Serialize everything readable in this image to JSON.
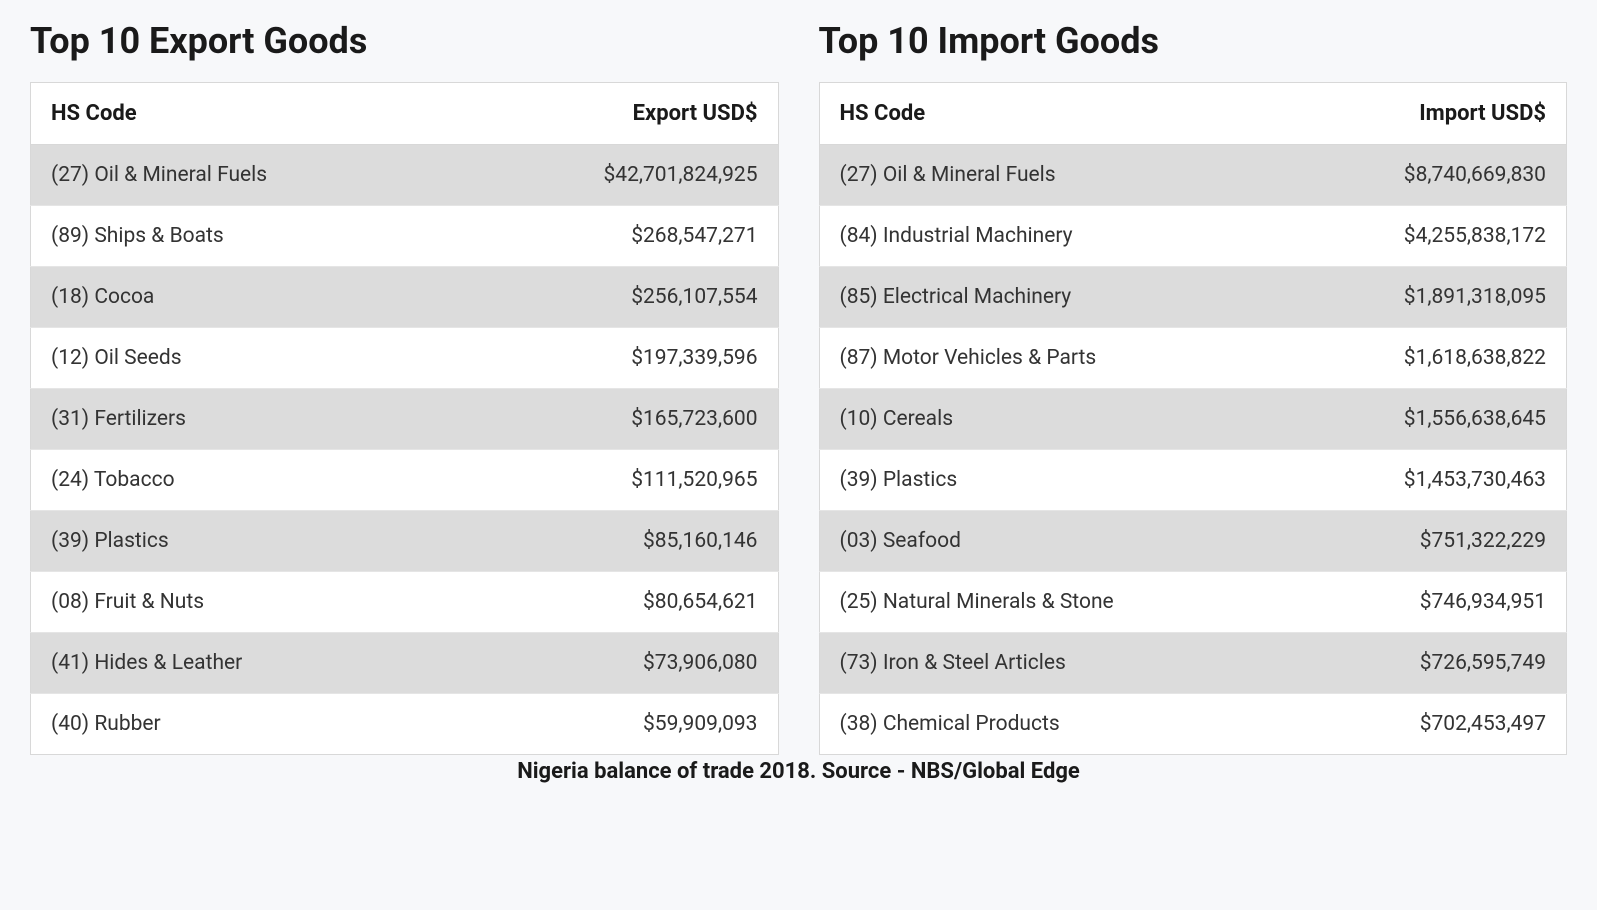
{
  "caption": "Nigeria balance of trade 2018. Source - NBS/Global Edge",
  "exports": {
    "title": "Top 10 Export Goods",
    "columns": [
      "HS Code",
      "Export USD$"
    ],
    "rows": [
      [
        "(27) Oil & Mineral Fuels",
        "$42,701,824,925"
      ],
      [
        "(89) Ships & Boats",
        "$268,547,271"
      ],
      [
        "(18) Cocoa",
        "$256,107,554"
      ],
      [
        "(12) Oil Seeds",
        "$197,339,596"
      ],
      [
        "(31) Fertilizers",
        "$165,723,600"
      ],
      [
        "(24) Tobacco",
        "$111,520,965"
      ],
      [
        "(39) Plastics",
        "$85,160,146"
      ],
      [
        "(08) Fruit & Nuts",
        "$80,654,621"
      ],
      [
        "(41) Hides & Leather",
        "$73,906,080"
      ],
      [
        "(40) Rubber",
        "$59,909,093"
      ]
    ]
  },
  "imports": {
    "title": "Top 10 Import Goods",
    "columns": [
      "HS Code",
      "Import USD$"
    ],
    "rows": [
      [
        "(27) Oil & Mineral Fuels",
        "$8,740,669,830"
      ],
      [
        "(84) Industrial Machinery",
        "$4,255,838,172"
      ],
      [
        "(85) Electrical Machinery",
        "$1,891,318,095"
      ],
      [
        "(87) Motor Vehicles & Parts",
        "$1,618,638,822"
      ],
      [
        "(10) Cereals",
        "$1,556,638,645"
      ],
      [
        "(39) Plastics",
        "$1,453,730,463"
      ],
      [
        "(03) Seafood",
        "$751,322,229"
      ],
      [
        "(25) Natural Minerals & Stone",
        "$746,934,951"
      ],
      [
        "(73) Iron & Steel Articles",
        "$726,595,749"
      ],
      [
        "(38) Chemical Products",
        "$702,453,497"
      ]
    ]
  },
  "styling": {
    "background_color": "#f7f8fa",
    "title_fontsize": 36,
    "title_color": "#1a1a1a",
    "header_fontsize": 22,
    "header_fontweight": 700,
    "cell_fontsize": 21,
    "cell_color": "#333333",
    "row_odd_bg": "#dcdcdc",
    "row_even_bg": "#ffffff",
    "table_border_color": "#d8d8d8",
    "row_border_color": "#e5e5e5",
    "caption_fontsize": 22,
    "caption_fontweight": 700
  }
}
